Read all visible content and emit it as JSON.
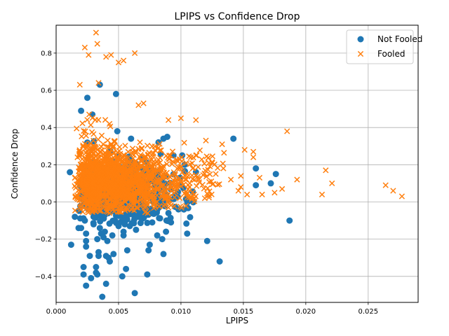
{
  "chart_data": {
    "type": "scatter",
    "title": "LPIPS vs Confidence Drop",
    "xlabel": "LPIPS",
    "ylabel": "Confidence Drop",
    "xlim": [
      0.0,
      0.029
    ],
    "ylim": [
      -0.54,
      0.95
    ],
    "xticks": [
      0.0,
      0.005,
      0.01,
      0.015,
      0.02,
      0.025
    ],
    "xtick_labels": [
      "0.000",
      "0.005",
      "0.010",
      "0.015",
      "0.020",
      "0.025"
    ],
    "yticks": [
      -0.4,
      -0.2,
      0.0,
      0.2,
      0.4,
      0.6,
      0.8
    ],
    "ytick_labels": [
      "−0.4",
      "−0.2",
      "0.0",
      "0.2",
      "0.4",
      "0.6",
      "0.8"
    ],
    "grid": true,
    "legend_position": "top-right",
    "series": [
      {
        "name": "Not Fooled",
        "color": "#1f77b4",
        "marker": "circle",
        "points": [
          [
            0.0011,
            0.16
          ],
          [
            0.0012,
            -0.23
          ],
          [
            0.0015,
            -0.08
          ],
          [
            0.0018,
            -0.14
          ],
          [
            0.002,
            -0.14
          ],
          [
            0.002,
            0.49
          ],
          [
            0.0022,
            -0.35
          ],
          [
            0.0022,
            -0.39
          ],
          [
            0.0023,
            -0.1
          ],
          [
            0.0024,
            -0.17
          ],
          [
            0.0024,
            -0.21
          ],
          [
            0.0024,
            -0.24
          ],
          [
            0.0024,
            -0.45
          ],
          [
            0.0025,
            0.56
          ],
          [
            0.0027,
            -0.29
          ],
          [
            0.0028,
            -0.41
          ],
          [
            0.0029,
            0.47
          ],
          [
            0.003,
            -0.08
          ],
          [
            0.003,
            -0.12
          ],
          [
            0.0032,
            -0.38
          ],
          [
            0.0032,
            -0.35
          ],
          [
            0.0033,
            -0.2
          ],
          [
            0.0033,
            -0.39
          ],
          [
            0.0034,
            -0.27
          ],
          [
            0.0034,
            -0.29
          ],
          [
            0.0035,
            0.63
          ],
          [
            0.0035,
            -0.14
          ],
          [
            0.0036,
            -0.17
          ],
          [
            0.0037,
            -0.51
          ],
          [
            0.0038,
            -0.19
          ],
          [
            0.0039,
            -0.16
          ],
          [
            0.004,
            -0.44
          ],
          [
            0.004,
            -0.29
          ],
          [
            0.0041,
            -0.21
          ],
          [
            0.0042,
            -0.3
          ],
          [
            0.0043,
            -0.32
          ],
          [
            0.0045,
            -0.18
          ],
          [
            0.0046,
            -0.28
          ],
          [
            0.0048,
            0.58
          ],
          [
            0.0049,
            0.38
          ],
          [
            0.005,
            -0.13
          ],
          [
            0.0053,
            -0.4
          ],
          [
            0.0054,
            -0.18
          ],
          [
            0.0054,
            -0.16
          ],
          [
            0.0055,
            -0.12
          ],
          [
            0.0056,
            -0.36
          ],
          [
            0.0057,
            -0.26
          ],
          [
            0.0059,
            -0.13
          ],
          [
            0.006,
            0.34
          ],
          [
            0.0063,
            -0.49
          ],
          [
            0.0064,
            -0.15
          ],
          [
            0.0065,
            -0.06
          ],
          [
            0.0066,
            -0.08
          ],
          [
            0.0067,
            -0.06
          ],
          [
            0.0069,
            -0.09
          ],
          [
            0.0073,
            -0.39
          ],
          [
            0.0074,
            -0.26
          ],
          [
            0.0075,
            -0.23
          ],
          [
            0.0076,
            -0.06
          ],
          [
            0.0077,
            -0.11
          ],
          [
            0.0081,
            -0.18
          ],
          [
            0.0082,
            0.32
          ],
          [
            0.0085,
            -0.2
          ],
          [
            0.0086,
            -0.28
          ],
          [
            0.0086,
            0.34
          ],
          [
            0.0088,
            -0.16
          ],
          [
            0.0089,
            0.35
          ],
          [
            0.009,
            -0.06
          ],
          [
            0.0092,
            -0.11
          ],
          [
            0.0094,
            0.25
          ],
          [
            0.0098,
            -0.04
          ],
          [
            0.0101,
            0.25
          ],
          [
            0.0103,
            0.2
          ],
          [
            0.0105,
            -0.17
          ],
          [
            0.0112,
            0.16
          ],
          [
            0.0121,
            -0.21
          ],
          [
            0.0131,
            -0.32
          ],
          [
            0.0142,
            0.34
          ],
          [
            0.016,
            0.18
          ],
          [
            0.016,
            0.09
          ],
          [
            0.0172,
            0.1
          ],
          [
            0.0176,
            0.15
          ],
          [
            0.0187,
            -0.1
          ]
        ]
      },
      {
        "name": "Fooled",
        "color": "#ff7f0e",
        "marker": "x",
        "points": [
          [
            0.0019,
            0.63
          ],
          [
            0.0023,
            0.83
          ],
          [
            0.0026,
            0.79
          ],
          [
            0.0032,
            0.91
          ],
          [
            0.0033,
            0.85
          ],
          [
            0.0034,
            0.64
          ],
          [
            0.004,
            0.78
          ],
          [
            0.0044,
            0.79
          ],
          [
            0.005,
            0.75
          ],
          [
            0.0054,
            0.76
          ],
          [
            0.0063,
            0.8
          ],
          [
            0.0066,
            0.52
          ],
          [
            0.007,
            0.53
          ],
          [
            0.009,
            0.44
          ],
          [
            0.01,
            0.45
          ],
          [
            0.0112,
            0.44
          ],
          [
            0.0112,
            0.25
          ],
          [
            0.012,
            0.33
          ],
          [
            0.0133,
            0.31
          ],
          [
            0.0134,
            0.18
          ],
          [
            0.014,
            0.12
          ],
          [
            0.0146,
            0.06
          ],
          [
            0.0148,
            0.08
          ],
          [
            0.0148,
            0.14
          ],
          [
            0.0151,
            0.28
          ],
          [
            0.0153,
            0.04
          ],
          [
            0.0158,
            0.27
          ],
          [
            0.0158,
            0.24
          ],
          [
            0.0163,
            0.13
          ],
          [
            0.0165,
            0.04
          ],
          [
            0.0175,
            0.05
          ],
          [
            0.0181,
            0.07
          ],
          [
            0.0185,
            0.38
          ],
          [
            0.0193,
            0.12
          ],
          [
            0.0213,
            0.04
          ],
          [
            0.0216,
            0.17
          ],
          [
            0.0221,
            0.1
          ],
          [
            0.0264,
            0.09
          ],
          [
            0.027,
            0.06
          ],
          [
            0.0277,
            0.03
          ]
        ]
      }
    ]
  }
}
